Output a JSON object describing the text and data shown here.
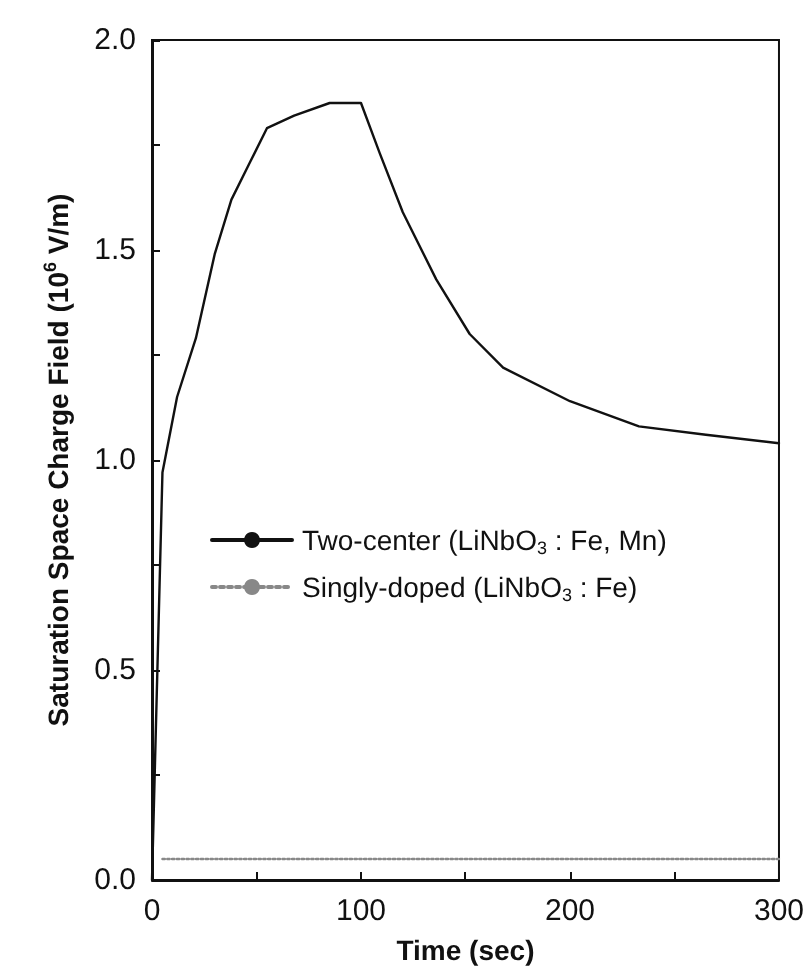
{
  "chart_data": {
    "type": "line",
    "xlabel": "Time (sec)",
    "ylabel": "Saturation Space Charge Field (10$^{6}$ V/m)",
    "xlim": [
      0,
      300
    ],
    "xticks": [
      0,
      100,
      200,
      300
    ],
    "ylim": [
      0,
      2
    ],
    "yticks": [
      {
        "value": 0,
        "label": "0.0"
      },
      {
        "value": 0.5,
        "label": "0.5"
      },
      {
        "value": 1,
        "label": "1.0"
      },
      {
        "value": 1.5,
        "label": "1.5"
      },
      {
        "value": 2,
        "label": "2.0"
      }
    ],
    "grid": false,
    "legend": "left",
    "marker": "none",
    "series": [
      {
        "name": "Two-center (LiNbO$_{3}$ : Fe, Mn)",
        "color": "#111111",
        "line_style": "solid",
        "x": [
          0,
          5,
          12,
          21,
          30,
          38,
          47,
          55,
          68,
          85,
          100,
          109,
          120,
          136,
          152,
          168,
          200,
          233,
          265,
          300
        ],
        "values": [
          0,
          0.97,
          1.15,
          1.29,
          1.49,
          1.62,
          1.71,
          1.79,
          1.82,
          1.85,
          1.85,
          1.73,
          1.59,
          1.43,
          1.3,
          1.22,
          1.14,
          1.08,
          1.06,
          1.04
        ]
      },
      {
        "name": "Singly-doped (LiNbO$_{3}$ : Fe)",
        "color": "#888888",
        "line_style": "dotted",
        "x": [
          5,
          300
        ],
        "values": [
          0.05,
          0.05
        ]
      }
    ]
  }
}
